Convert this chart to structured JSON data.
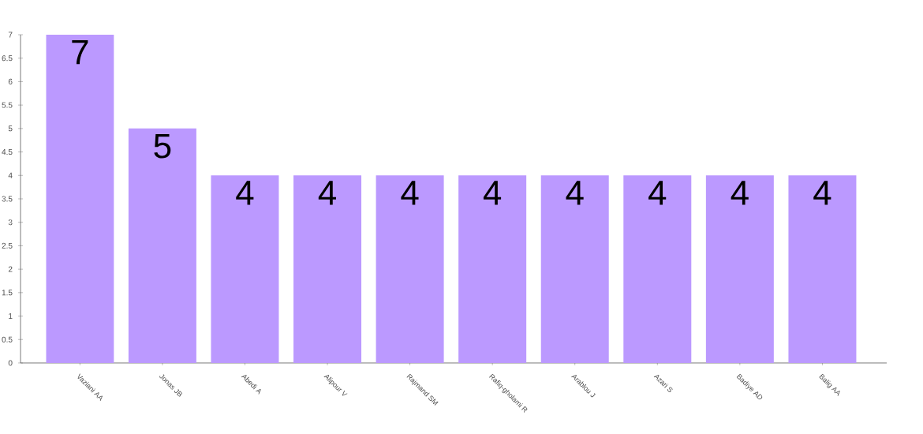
{
  "chart_data": {
    "type": "bar",
    "categories": [
      "Vaziani AA",
      "Jonas JB",
      "Abedi A",
      "Alipour V",
      "Rajmand SM",
      "Rafiq-gholami R",
      "Arablou J",
      "Azari S",
      "Badiye AD",
      "Balig AA"
    ],
    "values": [
      7,
      5,
      4,
      4,
      4,
      4,
      4,
      4,
      4,
      4
    ],
    "color": "#bb99ff",
    "ylim": [
      0,
      7
    ],
    "yticks": [
      0,
      0.5,
      1,
      1.5,
      2,
      2.5,
      3,
      3.5,
      4,
      4.5,
      5,
      5.5,
      6,
      6.5,
      7
    ],
    "data_labels": true
  }
}
